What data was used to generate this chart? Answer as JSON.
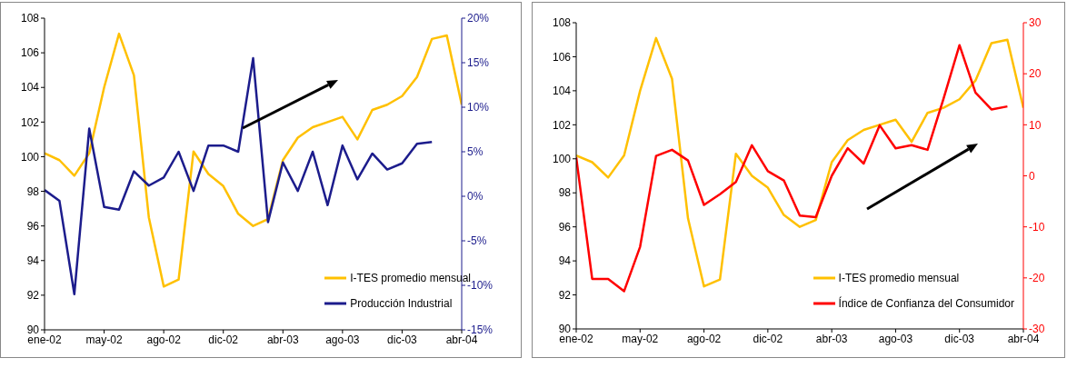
{
  "chart_data": [
    {
      "type": "line",
      "categories": [
        "ene-02",
        null,
        null,
        null,
        "may-02",
        null,
        null,
        null,
        "ago-02",
        null,
        null,
        null,
        "dic-02",
        null,
        null,
        null,
        "abr-03",
        null,
        null,
        null,
        "ago-03",
        null,
        null,
        null,
        "dic-03",
        null,
        null,
        null,
        "abr-04"
      ],
      "series": [
        {
          "name": "I-TES promedio mensual",
          "color": "#ffc000",
          "values": [
            100.2,
            99.8,
            98.9,
            100.2,
            104.0,
            107.1,
            104.7,
            96.5,
            92.5,
            92.9,
            100.3,
            99.0,
            98.3,
            96.7,
            96.0,
            96.4,
            99.8,
            101.1,
            101.7,
            102.0,
            102.3,
            101.0,
            102.7,
            103.0,
            103.5,
            104.6,
            106.8,
            107.0,
            103.0
          ]
        },
        {
          "name": "Producción Industrial",
          "color": "#1c1c8c",
          "axis": "y2",
          "values": [
            0.7,
            -0.5,
            -11.0,
            7.6,
            -1.2,
            -1.5,
            2.8,
            1.2,
            2.1,
            5.0,
            0.6,
            5.7,
            5.7,
            5.0,
            15.5,
            -2.9,
            3.8,
            0.6,
            5.0,
            -1.0,
            5.7,
            1.9,
            4.8,
            3.0,
            3.7,
            5.9,
            6.1,
            null,
            null
          ]
        }
      ],
      "ylim": [
        90,
        108
      ],
      "yticks": [
        90,
        92,
        94,
        96,
        98,
        100,
        102,
        104,
        106,
        108
      ],
      "y2lim": [
        -15,
        20
      ],
      "y2ticks": [
        {
          "value": -15,
          "label": "-15%"
        },
        {
          "value": -10,
          "label": "-10%"
        },
        {
          "value": -5,
          "label": "-5%"
        },
        {
          "value": 0,
          "label": "0%"
        },
        {
          "value": 5,
          "label": "5%"
        },
        {
          "value": 10,
          "label": "10%"
        },
        {
          "value": 15,
          "label": "15%"
        },
        {
          "value": 20,
          "label": "20%"
        }
      ],
      "legend": "bottom right",
      "grid": false
    },
    {
      "type": "line",
      "categories": [
        "ene-02",
        null,
        null,
        null,
        "may-02",
        null,
        null,
        null,
        "ago-02",
        null,
        null,
        null,
        "dic-02",
        null,
        null,
        null,
        "abr-03",
        null,
        null,
        null,
        "ago-03",
        null,
        null,
        null,
        "dic-03",
        null,
        null,
        null,
        "abr-04"
      ],
      "series": [
        {
          "name": "I-TES promedio mensual",
          "color": "#ffc000",
          "values": [
            100.2,
            99.8,
            98.9,
            100.2,
            104.0,
            107.1,
            104.7,
            96.5,
            92.5,
            92.9,
            100.3,
            99.0,
            98.3,
            96.7,
            96.0,
            96.4,
            99.8,
            101.1,
            101.7,
            102.0,
            102.3,
            101.0,
            102.7,
            103.0,
            103.5,
            104.6,
            106.8,
            107.0,
            103.0
          ]
        },
        {
          "name": "Índice de Confianza del Consumidor",
          "color": "#ff0000",
          "axis": "y2",
          "values": [
            3.6,
            -20.2,
            -20.2,
            -22.6,
            -13.9,
            3.9,
            5.1,
            3.0,
            -5.7,
            -3.6,
            -1.2,
            6.0,
            0.9,
            -0.9,
            -7.8,
            -8.1,
            0.0,
            5.4,
            2.4,
            9.9,
            5.4,
            6.0,
            5.1,
            15.1,
            25.6,
            16.3,
            13.0,
            13.6,
            null
          ]
        }
      ],
      "ylim": [
        90,
        108
      ],
      "yticks": [
        90,
        92,
        94,
        96,
        98,
        100,
        102,
        104,
        106,
        108
      ],
      "y2lim": [
        -30,
        30
      ],
      "y2ticks": [
        -30,
        -20,
        -10,
        0,
        10,
        20,
        30
      ],
      "legend": "bottom right",
      "grid": false
    }
  ]
}
